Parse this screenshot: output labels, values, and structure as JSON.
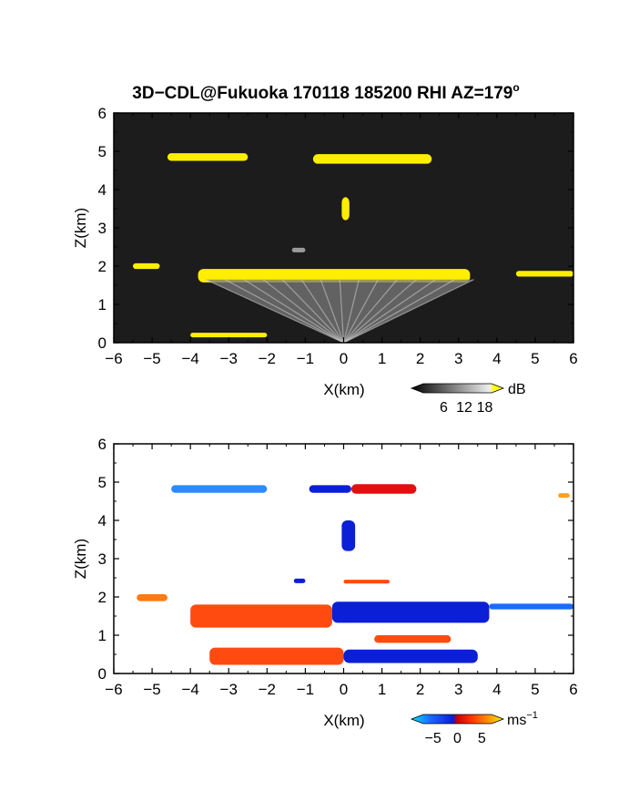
{
  "chart_data": [
    {
      "type": "heatmap",
      "title": "3D−CDL@Fukuoka 170118 185200 RHI AZ=179",
      "title_superscript": "o",
      "xlabel": "X(km)",
      "ylabel": "Z(km)",
      "xlim": [
        -6,
        6
      ],
      "ylim": [
        0,
        6
      ],
      "xticks": [
        "−6",
        "−5",
        "−4",
        "−3",
        "−2",
        "−1",
        "0",
        "1",
        "2",
        "3",
        "4",
        "5",
        "6"
      ],
      "yticks": [
        "0",
        "1",
        "2",
        "3",
        "4",
        "5",
        "6"
      ],
      "background": "#1c1c1c",
      "colorbar": {
        "unit": "dB",
        "ticks": [
          "6",
          "12",
          "18"
        ],
        "range": [
          0,
          20
        ],
        "high_color": "#ffff00"
      },
      "features": [
        {
          "kind": "layer",
          "x": [
            -5.5,
            -4.8
          ],
          "z": 2.0,
          "thickness": 0.15,
          "level": "high"
        },
        {
          "kind": "layer",
          "x": [
            -3.8,
            3.3
          ],
          "z": 1.75,
          "thickness": 0.35,
          "level": "high"
        },
        {
          "kind": "layer",
          "x": [
            4.5,
            6.0
          ],
          "z": 1.8,
          "thickness": 0.15,
          "level": "high"
        },
        {
          "kind": "layer",
          "x": [
            -4.6,
            -2.5
          ],
          "z": 4.85,
          "thickness": 0.2,
          "level": "high"
        },
        {
          "kind": "layer",
          "x": [
            -0.8,
            2.3
          ],
          "z": 4.8,
          "thickness": 0.25,
          "level": "high"
        },
        {
          "kind": "layer",
          "x": [
            -0.05,
            0.15
          ],
          "z": 3.5,
          "thickness": 0.6,
          "level": "high"
        },
        {
          "kind": "layer",
          "x": [
            -1.35,
            -1.0
          ],
          "z": 2.42,
          "thickness": 0.12,
          "level": "mid"
        },
        {
          "kind": "layer",
          "x": [
            -4.0,
            -2.0
          ],
          "z": 0.2,
          "thickness": 0.12,
          "level": "high"
        },
        {
          "kind": "fan",
          "x": [
            -3.6,
            3.4
          ],
          "z_top": 1.65,
          "level": "mid"
        }
      ]
    },
    {
      "type": "heatmap",
      "xlabel": "X(km)",
      "ylabel": "Z(km)",
      "xlim": [
        -6,
        6
      ],
      "ylim": [
        0,
        6
      ],
      "xticks": [
        "−6",
        "−5",
        "−4",
        "−3",
        "−2",
        "−1",
        "0",
        "1",
        "2",
        "3",
        "4",
        "5",
        "6"
      ],
      "yticks": [
        "0",
        "1",
        "2",
        "3",
        "4",
        "5",
        "6"
      ],
      "background": "#ffffff",
      "colorbar": {
        "unit": "ms",
        "unit_exponent": "−1",
        "ticks": [
          "−5",
          "0",
          "5"
        ],
        "range": [
          -7,
          7
        ]
      },
      "features": [
        {
          "kind": "patch",
          "x": [
            -5.4,
            -4.6
          ],
          "z": 1.98,
          "thickness": 0.18,
          "velocity": 4
        },
        {
          "kind": "patch",
          "x": [
            -4.5,
            -2.0
          ],
          "z": 4.82,
          "thickness": 0.2,
          "velocity": -4.5
        },
        {
          "kind": "patch",
          "x": [
            -0.9,
            0.2
          ],
          "z": 4.82,
          "thickness": 0.2,
          "velocity": -7
        },
        {
          "kind": "patch",
          "x": [
            0.2,
            1.9
          ],
          "z": 4.82,
          "thickness": 0.25,
          "velocity": 2
        },
        {
          "kind": "patch",
          "x": [
            -0.05,
            0.3
          ],
          "z": 3.6,
          "thickness": 0.8,
          "velocity": -7
        },
        {
          "kind": "patch",
          "x": [
            -1.3,
            -1.0
          ],
          "z": 2.42,
          "thickness": 0.12,
          "velocity": -6
        },
        {
          "kind": "patch",
          "x": [
            0.0,
            1.2
          ],
          "z": 2.4,
          "thickness": 0.1,
          "velocity": 3
        },
        {
          "kind": "patch",
          "x": [
            -4.0,
            -0.3
          ],
          "z": 1.5,
          "thickness": 0.6,
          "velocity": 3
        },
        {
          "kind": "patch",
          "x": [
            -0.3,
            3.8
          ],
          "z": 1.6,
          "thickness": 0.55,
          "velocity": -7
        },
        {
          "kind": "patch",
          "x": [
            3.8,
            6.0
          ],
          "z": 1.75,
          "thickness": 0.15,
          "velocity": -5
        },
        {
          "kind": "patch",
          "x": [
            -3.5,
            0.0
          ],
          "z": 0.45,
          "thickness": 0.45,
          "velocity": 3
        },
        {
          "kind": "patch",
          "x": [
            0.0,
            3.5
          ],
          "z": 0.45,
          "thickness": 0.35,
          "velocity": -7
        },
        {
          "kind": "patch",
          "x": [
            0.8,
            2.8
          ],
          "z": 0.9,
          "thickness": 0.2,
          "velocity": 3
        },
        {
          "kind": "patch",
          "x": [
            5.6,
            5.9
          ],
          "z": 4.65,
          "thickness": 0.12,
          "velocity": 5
        }
      ]
    }
  ]
}
